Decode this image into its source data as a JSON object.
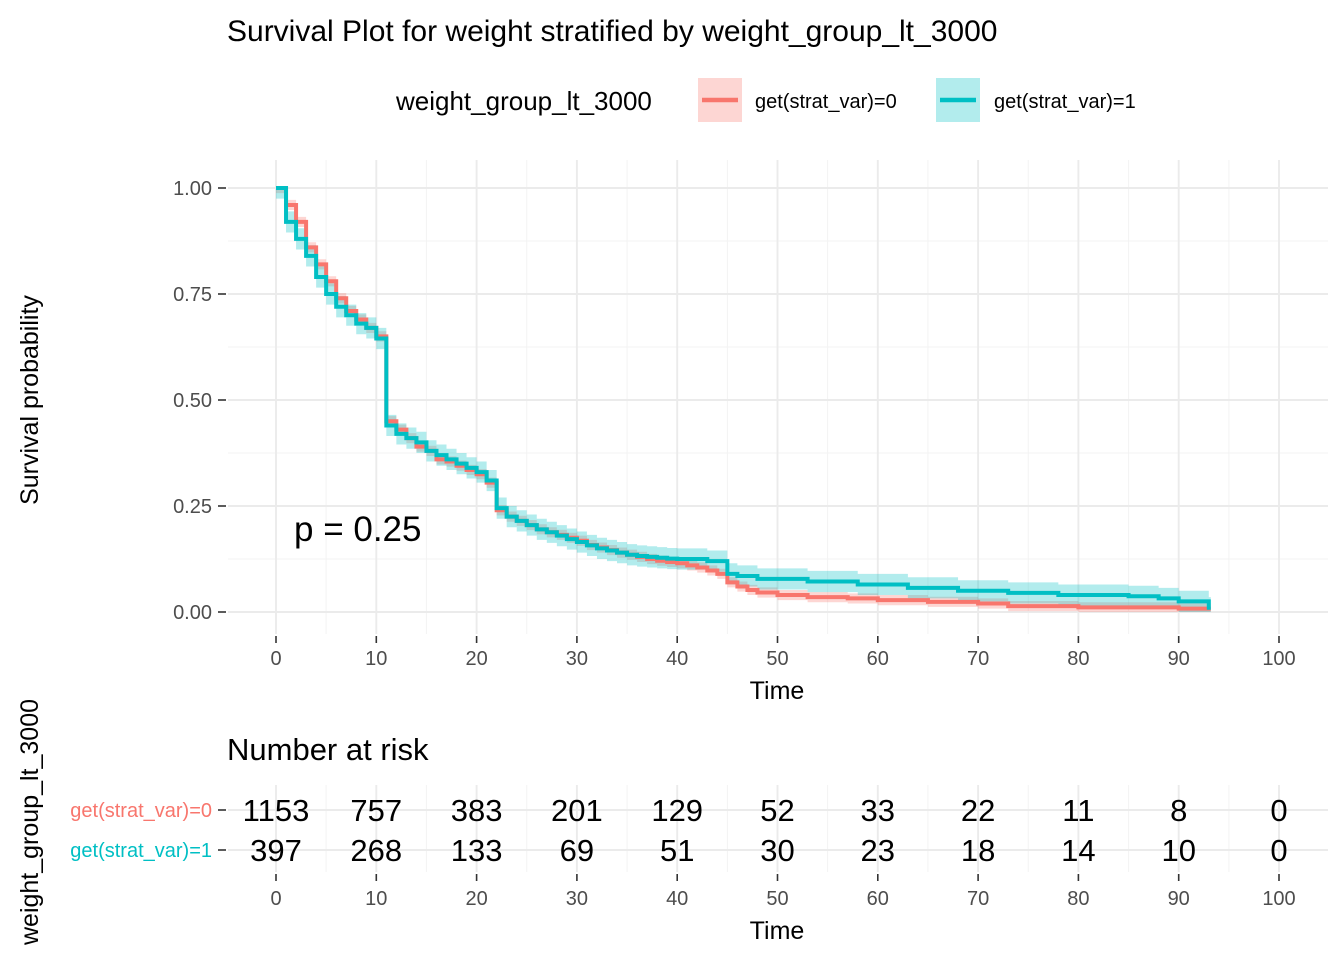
{
  "chart_data": [
    {
      "type": "line",
      "subtype": "kaplan-meier",
      "title": "Survival Plot for weight stratified by weight_group_lt_3000",
      "xlabel": "Time",
      "ylabel": "Survival probability",
      "xlim": [
        0,
        100
      ],
      "ylim": [
        0,
        1
      ],
      "x_ticks": [
        "0",
        "10",
        "20",
        "30",
        "40",
        "50",
        "60",
        "70",
        "80",
        "90",
        "100"
      ],
      "y_ticks": [
        "0.00",
        "0.25",
        "0.50",
        "0.75",
        "1.00"
      ],
      "grid": true,
      "annotation": "p = 0.25",
      "legend": {
        "title": "weight_group_lt_3000",
        "placement": "top",
        "entries": [
          "get(strat_var)=0",
          "get(strat_var)=1"
        ]
      },
      "colors": {
        "group0": "#F8766D",
        "group1": "#00BFC4"
      },
      "series": [
        {
          "name": "get(strat_var)=0",
          "color": "#F8766D",
          "ci_halfwidth": 0.012,
          "steps": [
            [
              0,
              1.0
            ],
            [
              1,
              0.96
            ],
            [
              2,
              0.92
            ],
            [
              3,
              0.86
            ],
            [
              4,
              0.82
            ],
            [
              5,
              0.78
            ],
            [
              6,
              0.74
            ],
            [
              7,
              0.71
            ],
            [
              8,
              0.69
            ],
            [
              9,
              0.67
            ],
            [
              10,
              0.65
            ],
            [
              11,
              0.45
            ],
            [
              12,
              0.43
            ],
            [
              13,
              0.41
            ],
            [
              14,
              0.39
            ],
            [
              15,
              0.38
            ],
            [
              16,
              0.36
            ],
            [
              17,
              0.355
            ],
            [
              18,
              0.345
            ],
            [
              19,
              0.335
            ],
            [
              20,
              0.325
            ],
            [
              21,
              0.305
            ],
            [
              22,
              0.24
            ],
            [
              23,
              0.225
            ],
            [
              24,
              0.215
            ],
            [
              25,
              0.205
            ],
            [
              26,
              0.195
            ],
            [
              27,
              0.188
            ],
            [
              28,
              0.182
            ],
            [
              29,
              0.175
            ],
            [
              30,
              0.168
            ],
            [
              31,
              0.158
            ],
            [
              32,
              0.152
            ],
            [
              33,
              0.146
            ],
            [
              34,
              0.14
            ],
            [
              35,
              0.135
            ],
            [
              36,
              0.13
            ],
            [
              37,
              0.125
            ],
            [
              38,
              0.121
            ],
            [
              39,
              0.118
            ],
            [
              40,
              0.115
            ],
            [
              41,
              0.11
            ],
            [
              42,
              0.105
            ],
            [
              43,
              0.098
            ],
            [
              44,
              0.09
            ],
            [
              45,
              0.07
            ],
            [
              46,
              0.06
            ],
            [
              47,
              0.052
            ],
            [
              48,
              0.046
            ],
            [
              50,
              0.04
            ],
            [
              53,
              0.035
            ],
            [
              57,
              0.032
            ],
            [
              60,
              0.028
            ],
            [
              65,
              0.024
            ],
            [
              70,
              0.02
            ],
            [
              73,
              0.014
            ],
            [
              80,
              0.011
            ],
            [
              90,
              0.008
            ],
            [
              93,
              0.008
            ]
          ]
        },
        {
          "name": "get(strat_var)=1",
          "color": "#00BFC4",
          "ci_halfwidth": 0.025,
          "steps": [
            [
              0,
              1.0
            ],
            [
              1,
              0.92
            ],
            [
              2,
              0.88
            ],
            [
              3,
              0.84
            ],
            [
              4,
              0.79
            ],
            [
              5,
              0.75
            ],
            [
              6,
              0.72
            ],
            [
              7,
              0.7
            ],
            [
              8,
              0.68
            ],
            [
              9,
              0.67
            ],
            [
              10,
              0.645
            ],
            [
              11,
              0.44
            ],
            [
              12,
              0.42
            ],
            [
              13,
              0.41
            ],
            [
              14,
              0.4
            ],
            [
              15,
              0.38
            ],
            [
              16,
              0.37
            ],
            [
              17,
              0.36
            ],
            [
              18,
              0.35
            ],
            [
              19,
              0.34
            ],
            [
              20,
              0.33
            ],
            [
              21,
              0.31
            ],
            [
              22,
              0.245
            ],
            [
              23,
              0.225
            ],
            [
              24,
              0.215
            ],
            [
              25,
              0.205
            ],
            [
              26,
              0.195
            ],
            [
              27,
              0.188
            ],
            [
              28,
              0.18
            ],
            [
              29,
              0.172
            ],
            [
              30,
              0.165
            ],
            [
              31,
              0.157
            ],
            [
              32,
              0.15
            ],
            [
              33,
              0.145
            ],
            [
              34,
              0.14
            ],
            [
              35,
              0.135
            ],
            [
              36,
              0.132
            ],
            [
              37,
              0.13
            ],
            [
              38,
              0.128
            ],
            [
              39,
              0.126
            ],
            [
              40,
              0.125
            ],
            [
              43,
              0.12
            ],
            [
              45,
              0.09
            ],
            [
              46,
              0.085
            ],
            [
              48,
              0.078
            ],
            [
              53,
              0.072
            ],
            [
              58,
              0.065
            ],
            [
              63,
              0.057
            ],
            [
              68,
              0.05
            ],
            [
              73,
              0.045
            ],
            [
              78,
              0.04
            ],
            [
              85,
              0.037
            ],
            [
              88,
              0.032
            ],
            [
              90,
              0.025
            ],
            [
              93,
              0.01
            ]
          ]
        }
      ]
    },
    {
      "type": "table",
      "title": "Number at risk",
      "xlabel": "Time",
      "ylabel": "weight_group_lt_3000",
      "x_ticks": [
        "0",
        "10",
        "20",
        "30",
        "40",
        "50",
        "60",
        "70",
        "80",
        "90",
        "100"
      ],
      "rows": [
        {
          "name": "get(strat_var)=0",
          "color": "#F8766D",
          "values": [
            "1153",
            "757",
            "383",
            "201",
            "129",
            "52",
            "33",
            "22",
            "11",
            "8",
            "0"
          ]
        },
        {
          "name": "get(strat_var)=1",
          "color": "#00BFC4",
          "values": [
            "397",
            "268",
            "133",
            "69",
            "51",
            "30",
            "23",
            "18",
            "14",
            "10",
            "0"
          ]
        }
      ]
    }
  ]
}
